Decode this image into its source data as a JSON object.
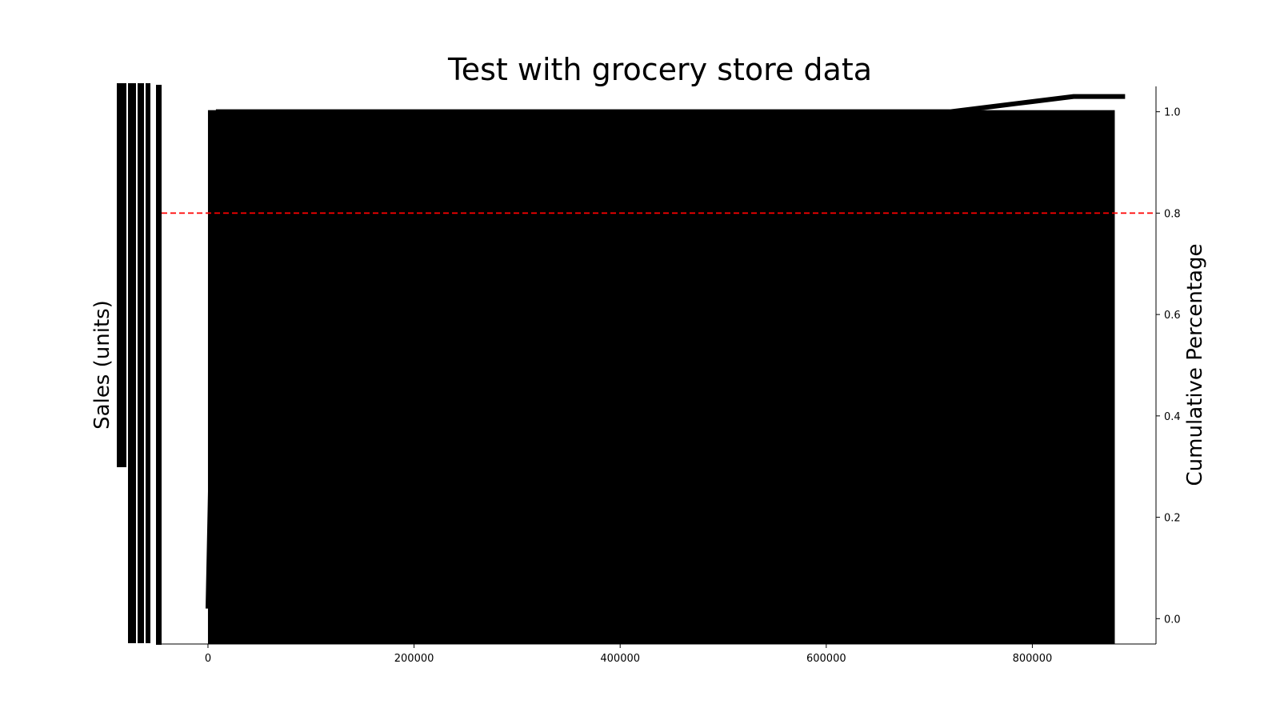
{
  "chart_data": {
    "type": "bar",
    "title": "Test with grocery store data",
    "ylabel": "Sales (units)",
    "y2label": "Cumulative Percentage",
    "xlim": [
      -45000,
      920000
    ],
    "ylim_right": [
      -0.05,
      1.05
    ],
    "x_ticks": [
      0,
      200000,
      400000,
      600000,
      800000
    ],
    "x_tick_labels": [
      "0",
      "200000",
      "400000",
      "600000",
      "800000"
    ],
    "y2_ticks": [
      0.0,
      0.2,
      0.4,
      0.6,
      0.8,
      1.0
    ],
    "y2_tick_labels": [
      "0.0",
      "0.2",
      "0.4",
      "0.6",
      "0.8",
      "1.0"
    ],
    "series": [
      {
        "kind": "bar",
        "x_range": [
          0,
          880000
        ],
        "color": "#000000"
      },
      {
        "kind": "line",
        "x": [
          0,
          10000,
          100000,
          300000,
          500000,
          700000,
          720000,
          760000,
          800000,
          840000,
          880000,
          890000
        ],
        "y": [
          0.02,
          1.0,
          1.0,
          1.0,
          1.0,
          1.0,
          1.0,
          1.01,
          1.02,
          1.03,
          1.03,
          1.03
        ],
        "color": "#000000"
      }
    ],
    "reference_line": {
      "y": 0.8,
      "color": "#ff0000",
      "style": "dashed"
    },
    "grid": false
  }
}
